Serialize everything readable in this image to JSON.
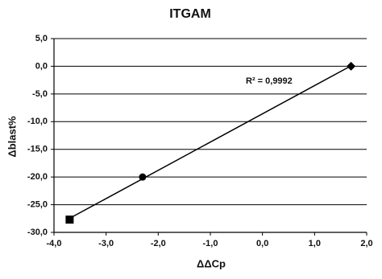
{
  "chart_data": {
    "type": "scatter",
    "title": "ITGAM",
    "x_label": "ΔΔCp",
    "y_label": "Δblast%",
    "x": [
      -3.7,
      -2.3,
      1.7
    ],
    "values": [
      -27.7,
      -20.0,
      0.0
    ],
    "markers": [
      "square",
      "circle",
      "diamond"
    ],
    "color": "#000000",
    "trendline": true,
    "annotation": "R² = 0,9992",
    "xlim": [
      -4,
      2
    ],
    "ylim": [
      -30,
      5
    ],
    "xticks": [
      {
        "value": -4,
        "label": "-4,0"
      },
      {
        "value": -3,
        "label": "-3,0"
      },
      {
        "value": -2,
        "label": "-2,0"
      },
      {
        "value": -1,
        "label": "-1,0"
      },
      {
        "value": 0,
        "label": "0,0"
      },
      {
        "value": 1,
        "label": "1,0"
      },
      {
        "value": 2,
        "label": "2,0"
      }
    ],
    "yticks": [
      {
        "value": 5,
        "label": "5,0"
      },
      {
        "value": 0,
        "label": "0,0"
      },
      {
        "value": -5,
        "label": "-5,0"
      },
      {
        "value": -10,
        "label": "-10,0"
      },
      {
        "value": -15,
        "label": "-15,0"
      },
      {
        "value": -20,
        "label": "-20,0"
      },
      {
        "value": -25,
        "label": "-25,0"
      },
      {
        "value": -30,
        "label": "-30,0"
      }
    ],
    "grid": true
  }
}
